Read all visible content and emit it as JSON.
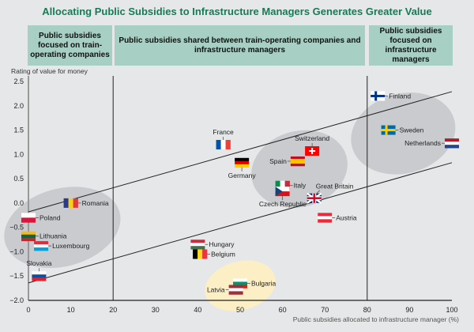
{
  "chart_data": {
    "type": "scatter",
    "title": "Allocating Public Subsidies to Infrastructure Managers Generates Greater Value",
    "headers": [
      "Public subsidies focused on train-operating companies",
      "Public subsidies shared between train-operating companies and infrastructure managers",
      "Public subsidies focused on infrastructure managers"
    ],
    "xlabel": "Public subsidies allocated to infrastructure manager (%)",
    "ylabel": "Rating of value for money",
    "xlim": [
      0,
      100
    ],
    "ylim": [
      -2.0,
      2.5
    ],
    "xticks": [
      "0",
      "10",
      "20",
      "30",
      "40",
      "50",
      "60",
      "70",
      "80",
      "90",
      "100"
    ],
    "yticks": [
      "2.5",
      "2.0",
      "1.5",
      "1.0",
      "0.5",
      "0.0",
      "−0.5",
      "−1.0",
      "−1.5",
      "−2.0"
    ],
    "dividers": [
      20,
      80
    ],
    "band_lines": [
      {
        "from": [
          0,
          -0.18
        ],
        "to": [
          100,
          2.29
        ]
      },
      {
        "from": [
          0,
          -1.64
        ],
        "to": [
          100,
          0.83
        ]
      }
    ],
    "points": [
      {
        "name": "Romania",
        "x": 10,
        "y": 0.0,
        "flag": {
          "dir": "v",
          "colors": [
            "#2b3a8c",
            "#f7d117",
            "#e03a3e"
          ]
        },
        "label": "right"
      },
      {
        "name": "Poland",
        "x": 0,
        "y": -0.3,
        "flag": {
          "dir": "h",
          "colors": [
            "#ffffff",
            "#dc143c"
          ]
        },
        "label": "right"
      },
      {
        "name": "Lithuania",
        "x": 0,
        "y": -0.68,
        "flag": {
          "dir": "h",
          "colors": [
            "#fdb913",
            "#006a44",
            "#c1272d"
          ]
        },
        "label": "right"
      },
      {
        "name": "Luxembourg",
        "x": 3,
        "y": -0.88,
        "flag": {
          "dir": "h",
          "colors": [
            "#ed2939",
            "#ffffff",
            "#00a1de"
          ]
        },
        "label": "right"
      },
      {
        "name": "Slovakia",
        "x": 2.5,
        "y": -1.5,
        "flag": {
          "dir": "h",
          "colors": [
            "#ffffff",
            "#0b4ea2",
            "#ee1c25"
          ]
        },
        "label": "top"
      },
      {
        "name": "Hungary",
        "x": 40,
        "y": -0.85,
        "flag": {
          "dir": "h",
          "colors": [
            "#cd2a3e",
            "#ffffff",
            "#436f4d"
          ]
        },
        "label": "right"
      },
      {
        "name": "Belgium",
        "x": 40.5,
        "y": -1.05,
        "flag": {
          "dir": "v",
          "colors": [
            "#000000",
            "#fdda24",
            "#ef3340"
          ]
        },
        "label": "right"
      },
      {
        "name": "Bulgaria",
        "x": 50,
        "y": -1.65,
        "flag": {
          "dir": "h",
          "colors": [
            "#ffffff",
            "#00966e",
            "#d62612"
          ]
        },
        "label": "right"
      },
      {
        "name": "Latvia",
        "x": 49,
        "y": -1.78,
        "flag": {
          "dir": "h",
          "colors": [
            "#9e3039",
            "#ffffff",
            "#9e3039"
          ]
        },
        "label": "left"
      },
      {
        "name": "France",
        "x": 46,
        "y": 1.2,
        "flag": {
          "dir": "v",
          "colors": [
            "#0055a4",
            "#ffffff",
            "#ef4135"
          ]
        },
        "label": "top"
      },
      {
        "name": "Germany",
        "x": 50.4,
        "y": 0.83,
        "flag": {
          "dir": "h",
          "colors": [
            "#000000",
            "#dd0000",
            "#ffce00"
          ]
        },
        "label": "bottom"
      },
      {
        "name": "Spain",
        "x": 63.6,
        "y": 0.86,
        "flag": {
          "dir": "h",
          "colors": [
            "#c60b1e",
            "#ffc400",
            "#ffc400",
            "#c60b1e"
          ]
        },
        "label": "left"
      },
      {
        "name": "Switzerland",
        "x": 67,
        "y": 1.07,
        "flag": {
          "dir": "swiss",
          "colors": [
            "#ff0000",
            "#ffffff"
          ]
        },
        "label": "top"
      },
      {
        "name": "Italy",
        "x": 60,
        "y": 0.36,
        "flag": {
          "dir": "v",
          "colors": [
            "#009246",
            "#ffffff",
            "#ce2b37"
          ]
        },
        "label": "right"
      },
      {
        "name": "Czech Republic",
        "x": 60,
        "y": 0.24,
        "flag": {
          "dir": "czech",
          "colors": [
            "#ffffff",
            "#d7141a",
            "#11457e"
          ]
        },
        "label": "bottom"
      },
      {
        "name": "Great Britain",
        "x": 67.5,
        "y": 0.1,
        "flag": {
          "dir": "uk",
          "colors": [
            "#012169",
            "#ffffff",
            "#c8102e"
          ]
        },
        "label": "topright"
      },
      {
        "name": "Austria",
        "x": 70,
        "y": -0.3,
        "flag": {
          "dir": "h",
          "colors": [
            "#ed2939",
            "#ffffff",
            "#ed2939"
          ]
        },
        "label": "right"
      },
      {
        "name": "Finland",
        "x": 82.5,
        "y": 2.2,
        "flag": {
          "dir": "nordic",
          "colors": [
            "#ffffff",
            "#003580"
          ]
        },
        "label": "right"
      },
      {
        "name": "Sweden",
        "x": 85,
        "y": 1.5,
        "flag": {
          "dir": "nordic",
          "colors": [
            "#006aa7",
            "#fecc00"
          ]
        },
        "label": "right"
      },
      {
        "name": "Netherlands",
        "x": 100,
        "y": 1.23,
        "flag": {
          "dir": "h",
          "colors": [
            "#ae1c28",
            "#ffffff",
            "#21468b"
          ]
        },
        "label": "left"
      }
    ],
    "clusters": [
      {
        "color": "#c9cbce",
        "cx": 8,
        "cy": -0.5,
        "rx": 14,
        "ry": 0.8
      },
      {
        "color": "#c9cbce",
        "cx": 64,
        "cy": 0.7,
        "rx": 11.5,
        "ry": 0.78
      },
      {
        "color": "#c9cbce",
        "cx": 88.5,
        "cy": 1.43,
        "rx": 12.5,
        "ry": 0.82
      },
      {
        "color": "#fcefc6",
        "cx": 50,
        "cy": -1.7,
        "rx": 8.5,
        "ry": 0.5
      }
    ],
    "colors": {
      "title": "#197a56",
      "header_bg": "#a8cfc3",
      "background": "#e6e7e8"
    }
  }
}
